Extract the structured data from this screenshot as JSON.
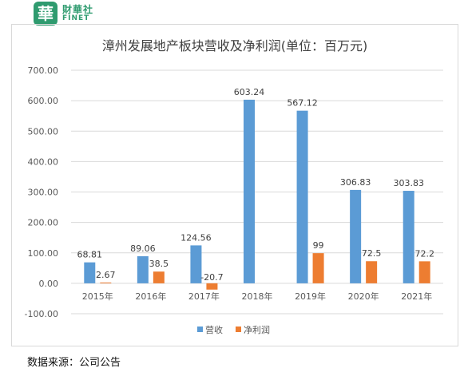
{
  "logo": {
    "seal_char": "華",
    "brand_cn": "財華社",
    "brand_en": "FINET"
  },
  "source": "数据来源：公司公告",
  "colors": {
    "revenue": "#5b9bd5",
    "profit": "#ed7d31",
    "grid": "#d9d9d9",
    "text": "#595959"
  },
  "chart_data": {
    "type": "bar",
    "title": "漳州发展地产板块营收及净利润(单位：百万元)",
    "categories": [
      "2015年",
      "2016年",
      "2017年",
      "2018年",
      "2019年",
      "2020年",
      "2021年"
    ],
    "series": [
      {
        "name": "营收",
        "values": [
          68.81,
          89.06,
          124.56,
          603.24,
          567.12,
          306.83,
          303.83
        ],
        "labels": [
          "68.81",
          "89.06",
          "124.56",
          "603.24",
          "567.12",
          "306.83",
          "303.83"
        ]
      },
      {
        "name": "净利润",
        "values": [
          2.67,
          38.5,
          -20.7,
          null,
          99,
          72.5,
          72.2
        ],
        "labels": [
          "2.67",
          "38.5",
          "-20.7",
          "",
          "99",
          "72.5",
          "72.2"
        ]
      }
    ],
    "yticks": [
      "700.00",
      "600.00",
      "500.00",
      "400.00",
      "300.00",
      "200.00",
      "100.00",
      "0.00",
      "-100.00"
    ],
    "ylim": [
      -100,
      700
    ],
    "grid": true,
    "legend": "bottom"
  }
}
